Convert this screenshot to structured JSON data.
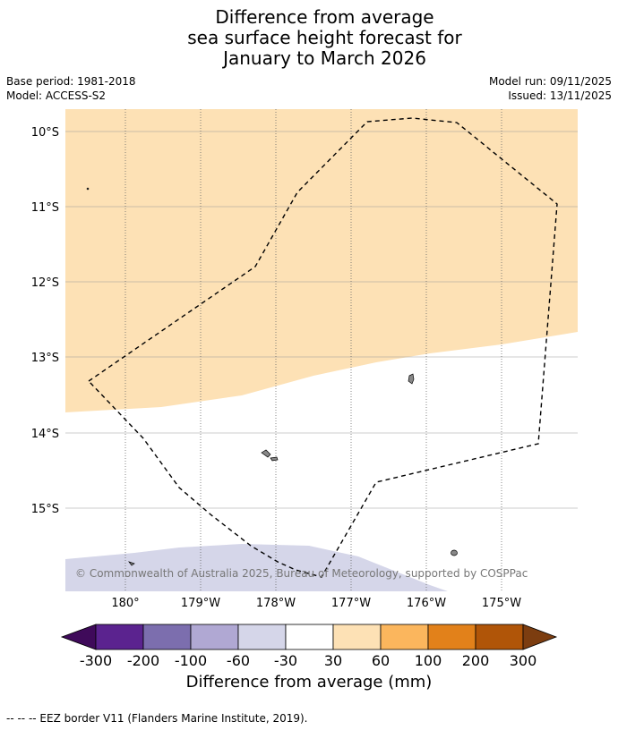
{
  "title": {
    "line1": "Difference from average",
    "line2": "sea surface height forecast for",
    "line3": "January to March 2026"
  },
  "meta": {
    "base_period": "Base period: 1981-2018",
    "model": "Model: ACCESS-S2",
    "model_run": "Model run: 09/11/2025",
    "issued": "Issued: 13/11/2025"
  },
  "map": {
    "latitude_labels": [
      "10°S",
      "11°S",
      "12°S",
      "13°S",
      "14°S",
      "15°S"
    ],
    "longitude_labels": [
      "180°",
      "179°W",
      "178°W",
      "177°W",
      "176°W",
      "175°W"
    ],
    "copyright": "© Commonwealth of Australia 2025, Bureau of Meteorology, supported by COSPPac",
    "region_colors": {
      "anomaly_30_60": "#fde1b5",
      "anomaly_minus60_minus30": "#d5d6e9"
    }
  },
  "colorbar": {
    "title": "Difference from average (mm)",
    "tick_labels": [
      "-300",
      "-200",
      "-100",
      "-60",
      "-30",
      "30",
      "60",
      "100",
      "200",
      "300"
    ],
    "colors": [
      "#3f0a5a",
      "#5b238f",
      "#7c6eae",
      "#b0a8d3",
      "#d5d6e9",
      "#ffffff",
      "#fde1b5",
      "#fbb65d",
      "#e2811a",
      "#b05508",
      "#7c3d10"
    ]
  },
  "footer": "--  --  -- EEZ border V11 (Flanders Marine Institute, 2019)."
}
